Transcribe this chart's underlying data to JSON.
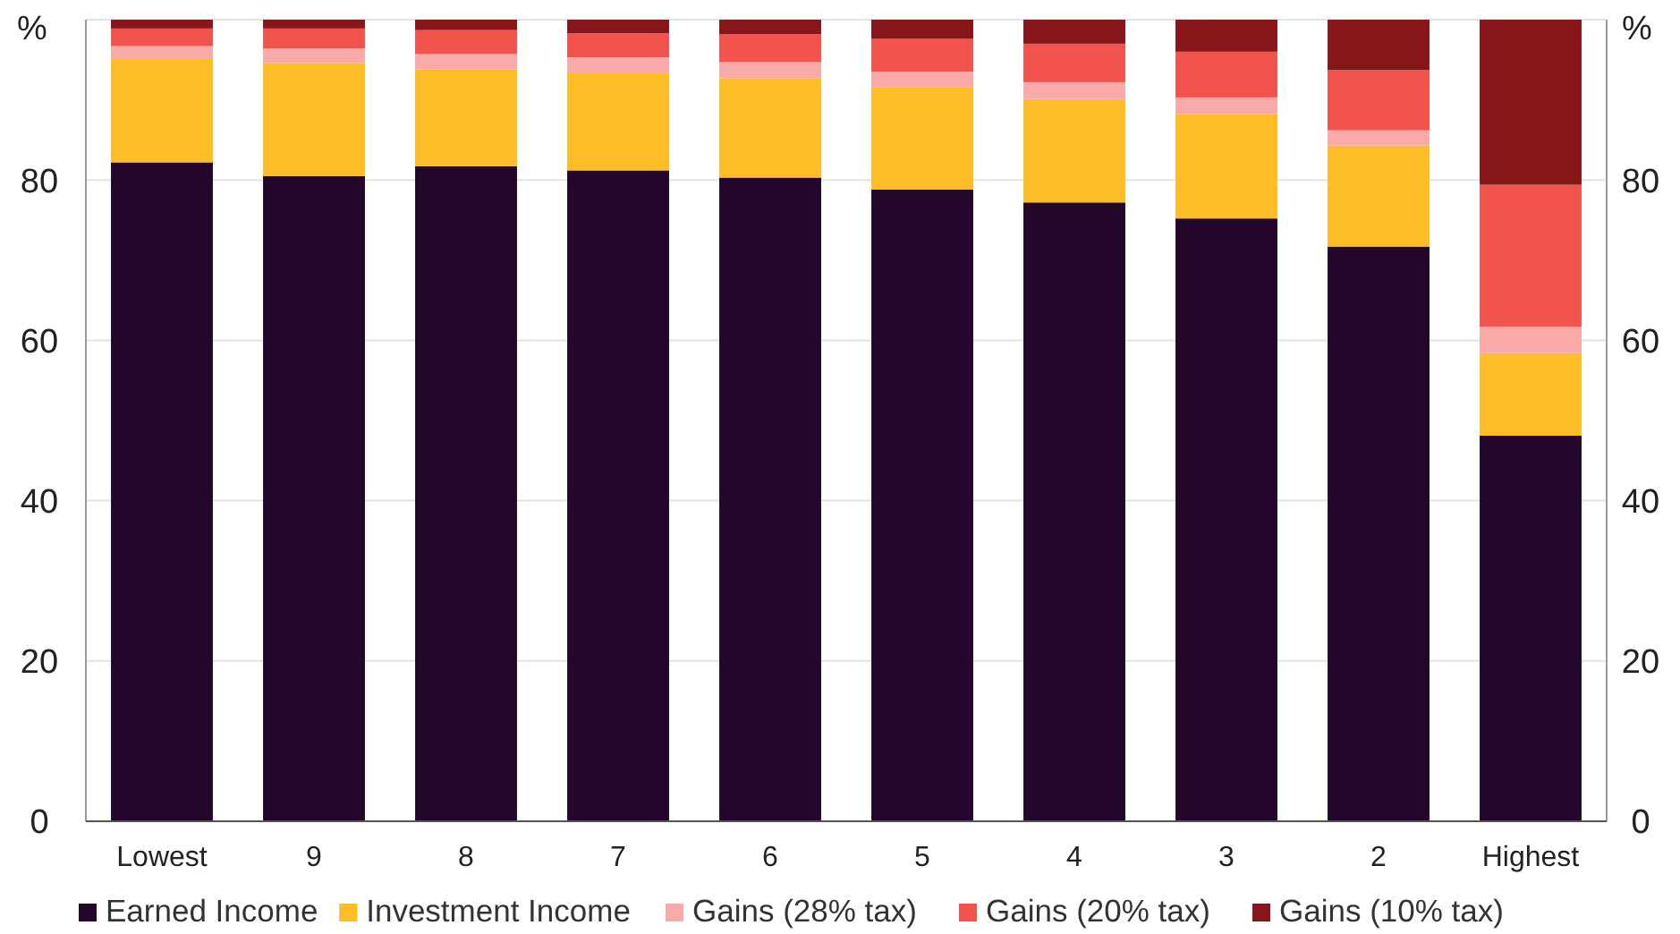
{
  "chart_data": {
    "type": "bar",
    "stacked": true,
    "ylabel": "%",
    "y2label": "%",
    "categories": [
      "Lowest",
      "9",
      "8",
      "7",
      "6",
      "5",
      "4",
      "3",
      "2",
      "Highest"
    ],
    "series": [
      {
        "name": "Earned Income",
        "color": "#22072b",
        "values": [
          82.2,
          80.5,
          81.7,
          81.2,
          80.3,
          78.8,
          77.2,
          75.2,
          71.7,
          48.1
        ]
      },
      {
        "name": "Investment Income",
        "color": "#fdbd26",
        "values": [
          12.9,
          14.1,
          12.1,
          12.2,
          12.4,
          12.8,
          12.9,
          13.0,
          12.6,
          10.3
        ]
      },
      {
        "name": "Gains (28% tax)",
        "color": "#f8aaa8",
        "values": [
          1.6,
          1.8,
          1.9,
          1.9,
          2.0,
          1.9,
          2.1,
          2.1,
          1.9,
          3.3
        ]
      },
      {
        "name": "Gains (20% tax)",
        "color": "#f1534d",
        "values": [
          2.2,
          2.5,
          3.0,
          3.0,
          3.5,
          4.1,
          4.8,
          5.7,
          7.5,
          17.7
        ]
      },
      {
        "name": "Gains (10% tax)",
        "color": "#86161a",
        "values": [
          1.1,
          1.1,
          1.3,
          1.7,
          1.8,
          2.4,
          3.0,
          4.0,
          6.3,
          20.6
        ]
      }
    ],
    "ylim": [
      0,
      100
    ],
    "yticks": [
      0,
      20,
      40,
      60,
      80
    ],
    "y2lim": [
      0,
      100
    ],
    "y2ticks": [
      0,
      20,
      40,
      60,
      80
    ],
    "grid": "y",
    "legend": "bottom"
  }
}
